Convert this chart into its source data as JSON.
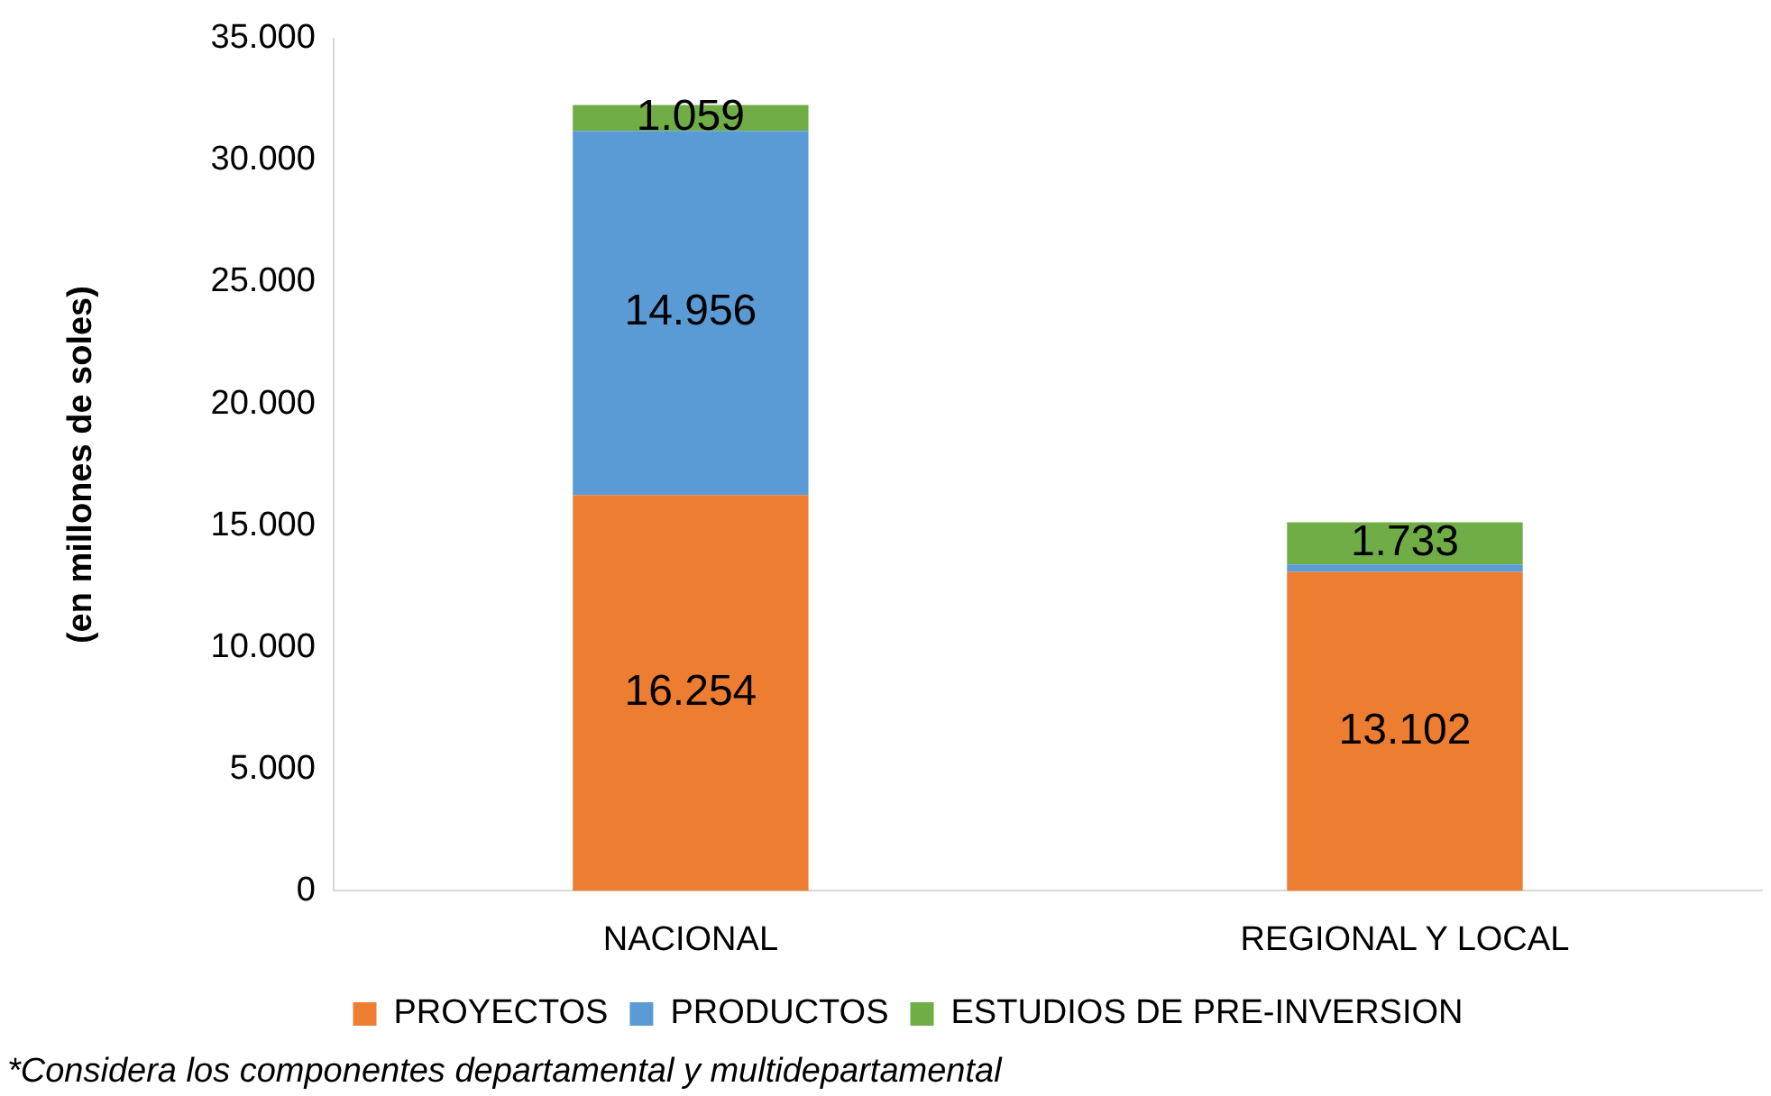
{
  "chart_data": {
    "type": "bar",
    "stacked": true,
    "ylabel": "(en millones de soles)",
    "categories": [
      "NACIONAL",
      "REGIONAL Y LOCAL"
    ],
    "series": [
      {
        "name": "PROYECTOS",
        "color": "#ed7d31",
        "values": [
          16254,
          13102
        ],
        "value_labels": [
          "16.254",
          "13.102"
        ]
      },
      {
        "name": "PRODUCTOS",
        "color": "#5b9bd5",
        "values": [
          14956,
          300
        ],
        "value_labels": [
          "14.956",
          null
        ]
      },
      {
        "name": "ESTUDIOS DE PRE-INVERSION",
        "color": "#70ad47",
        "values": [
          1059,
          1733
        ],
        "value_labels": [
          "1.059",
          "1.733"
        ]
      }
    ],
    "ylim": [
      0,
      35000
    ],
    "yticks": [
      {
        "value": 0,
        "label": "0"
      },
      {
        "value": 5000,
        "label": "5.000"
      },
      {
        "value": 10000,
        "label": "10.000"
      },
      {
        "value": 15000,
        "label": "15.000"
      },
      {
        "value": 20000,
        "label": "20.000"
      },
      {
        "value": 25000,
        "label": "25.000"
      },
      {
        "value": 30000,
        "label": "30.000"
      },
      {
        "value": 35000,
        "label": "35.000"
      }
    ],
    "grid": false,
    "legend": "bottom",
    "annotations": [
      "*Considera los componentes departamental y multidepartamental"
    ]
  }
}
